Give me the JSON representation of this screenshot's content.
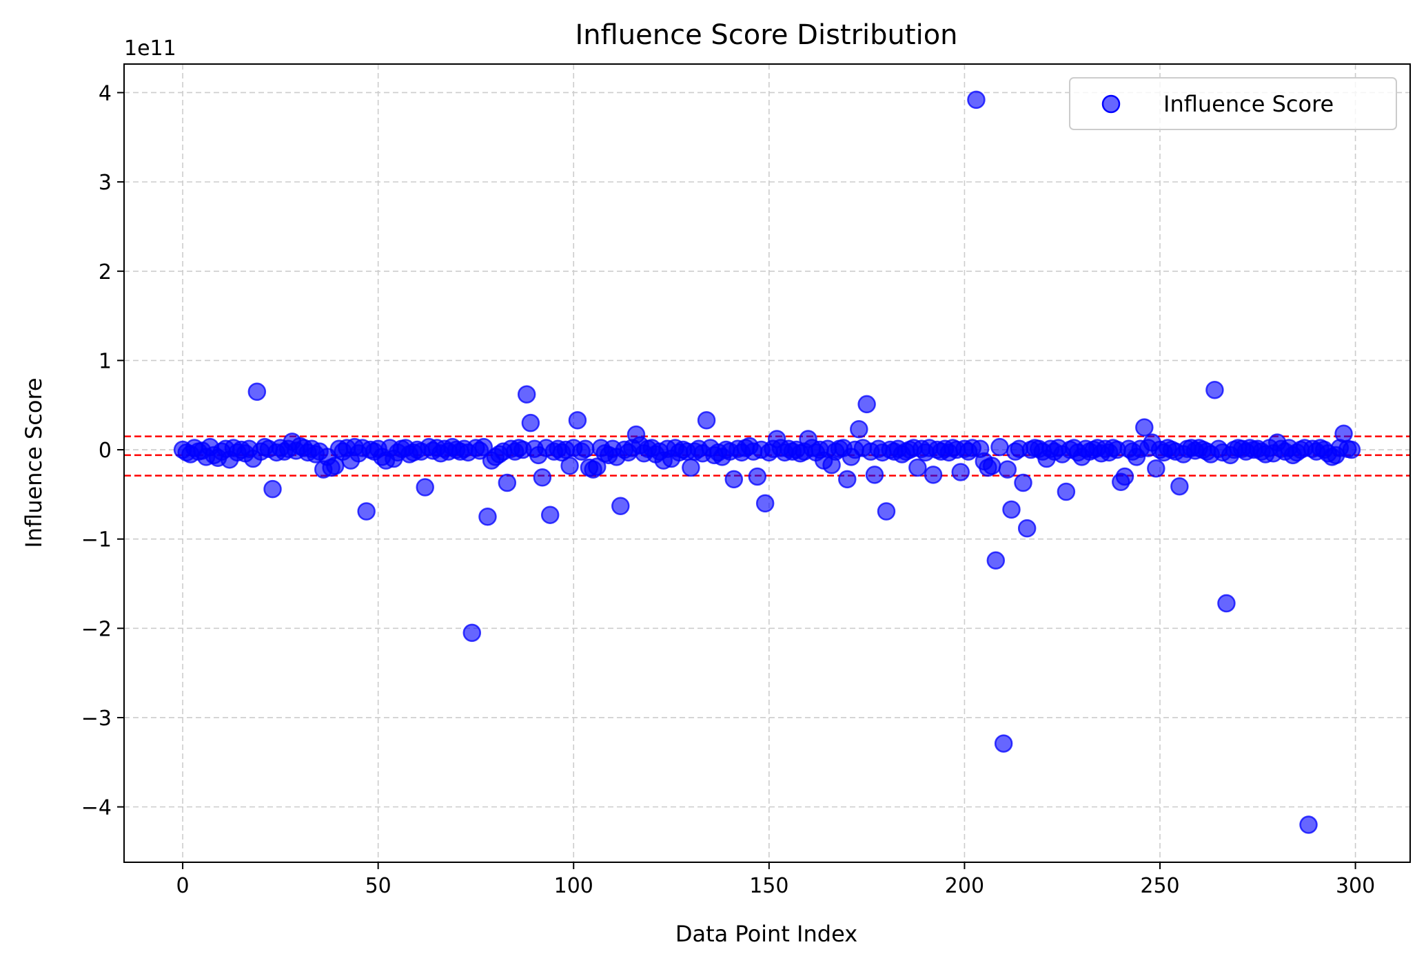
{
  "chart_data": {
    "type": "scatter",
    "title": "Influence Score Distribution",
    "xlabel": "Data Point Index",
    "ylabel": "Influence Score",
    "y_offset_text": "1e11",
    "xlim": [
      -15,
      314
    ],
    "ylim": [
      -4.62,
      4.32
    ],
    "xticks": [
      0,
      50,
      100,
      150,
      200,
      250,
      300
    ],
    "xtick_labels": [
      "0",
      "50",
      "100",
      "150",
      "200",
      "250",
      "300"
    ],
    "yticks": [
      -4,
      -3,
      -2,
      -1,
      0,
      1,
      2,
      3,
      4
    ],
    "ytick_labels": [
      "−4",
      "−3",
      "−2",
      "−1",
      "0",
      "1",
      "2",
      "3",
      "4"
    ],
    "grid": true,
    "legend_position": "top-right",
    "series": [
      {
        "name": "Influence Score",
        "color": "#0000ff",
        "alpha": 0.6,
        "points": [
          [
            0,
            0.0
          ],
          [
            1,
            -0.03
          ],
          [
            2,
            -0.05
          ],
          [
            3,
            0.02
          ],
          [
            4,
            -0.02
          ],
          [
            5,
            -0.01
          ],
          [
            6,
            -0.08
          ],
          [
            7,
            0.03
          ],
          [
            8,
            -0.06
          ],
          [
            9,
            -0.09
          ],
          [
            10,
            -0.02
          ],
          [
            11,
            0.01
          ],
          [
            12,
            -0.11
          ],
          [
            13,
            0.02
          ],
          [
            14,
            -0.03
          ],
          [
            15,
            0.0
          ],
          [
            16,
            -0.04
          ],
          [
            17,
            0.01
          ],
          [
            18,
            -0.1
          ],
          [
            19,
            0.65
          ],
          [
            20,
            -0.02
          ],
          [
            21,
            0.03
          ],
          [
            22,
            0.01
          ],
          [
            23,
            -0.44
          ],
          [
            24,
            -0.03
          ],
          [
            25,
            0.02
          ],
          [
            26,
            -0.02
          ],
          [
            27,
            0.01
          ],
          [
            28,
            0.09
          ],
          [
            29,
            -0.01
          ],
          [
            30,
            0.04
          ],
          [
            31,
            0.02
          ],
          [
            32,
            -0.03
          ],
          [
            33,
            0.01
          ],
          [
            34,
            -0.05
          ],
          [
            35,
            -0.02
          ],
          [
            36,
            -0.22
          ],
          [
            37,
            -0.08
          ],
          [
            38,
            -0.2
          ],
          [
            39,
            -0.18
          ],
          [
            40,
            0.01
          ],
          [
            41,
            -0.02
          ],
          [
            42,
            0.02
          ],
          [
            43,
            -0.12
          ],
          [
            44,
            0.03
          ],
          [
            45,
            -0.04
          ],
          [
            46,
            0.02
          ],
          [
            47,
            -0.69
          ],
          [
            48,
            0.0
          ],
          [
            49,
            -0.02
          ],
          [
            50,
            0.01
          ],
          [
            51,
            -0.08
          ],
          [
            52,
            -0.12
          ],
          [
            53,
            0.02
          ],
          [
            54,
            -0.1
          ],
          [
            55,
            -0.03
          ],
          [
            56,
            0.01
          ],
          [
            57,
            0.02
          ],
          [
            58,
            -0.05
          ],
          [
            59,
            -0.03
          ],
          [
            60,
            0.0
          ],
          [
            61,
            -0.02
          ],
          [
            62,
            -0.42
          ],
          [
            63,
            0.03
          ],
          [
            64,
            -0.01
          ],
          [
            65,
            0.02
          ],
          [
            66,
            -0.04
          ],
          [
            67,
            0.01
          ],
          [
            68,
            -0.02
          ],
          [
            69,
            0.03
          ],
          [
            70,
            0.0
          ],
          [
            71,
            -0.02
          ],
          [
            72,
            0.01
          ],
          [
            73,
            -0.03
          ],
          [
            74,
            -2.05
          ],
          [
            75,
            0.02
          ],
          [
            76,
            -0.01
          ],
          [
            77,
            0.03
          ],
          [
            78,
            -0.75
          ],
          [
            79,
            -0.12
          ],
          [
            80,
            -0.08
          ],
          [
            81,
            -0.05
          ],
          [
            82,
            -0.02
          ],
          [
            83,
            -0.37
          ],
          [
            84,
            0.01
          ],
          [
            85,
            -0.02
          ],
          [
            86,
            0.02
          ],
          [
            87,
            0.0
          ],
          [
            88,
            0.62
          ],
          [
            89,
            0.3
          ],
          [
            90,
            0.01
          ],
          [
            91,
            -0.06
          ],
          [
            92,
            -0.31
          ],
          [
            93,
            0.02
          ],
          [
            94,
            -0.73
          ],
          [
            95,
            -0.02
          ],
          [
            96,
            0.01
          ],
          [
            97,
            -0.03
          ],
          [
            98,
            0.0
          ],
          [
            99,
            -0.18
          ],
          [
            100,
            0.02
          ],
          [
            101,
            0.33
          ],
          [
            102,
            -0.02
          ],
          [
            103,
            0.01
          ],
          [
            104,
            -0.2
          ],
          [
            105,
            -0.22
          ],
          [
            106,
            -0.19
          ],
          [
            107,
            0.02
          ],
          [
            108,
            -0.04
          ],
          [
            109,
            -0.06
          ],
          [
            110,
            0.01
          ],
          [
            111,
            -0.08
          ],
          [
            112,
            -0.63
          ],
          [
            113,
            0.0
          ],
          [
            114,
            -0.03
          ],
          [
            115,
            0.02
          ],
          [
            116,
            0.17
          ],
          [
            117,
            0.05
          ],
          [
            118,
            -0.04
          ],
          [
            119,
            0.01
          ],
          [
            120,
            0.02
          ],
          [
            121,
            -0.05
          ],
          [
            122,
            -0.02
          ],
          [
            123,
            -0.12
          ],
          [
            124,
            0.01
          ],
          [
            125,
            -0.1
          ],
          [
            126,
            0.02
          ],
          [
            127,
            -0.03
          ],
          [
            128,
            0.0
          ],
          [
            129,
            -0.02
          ],
          [
            130,
            -0.2
          ],
          [
            131,
            -0.02
          ],
          [
            132,
            0.01
          ],
          [
            133,
            -0.04
          ],
          [
            134,
            0.33
          ],
          [
            135,
            0.02
          ],
          [
            136,
            -0.06
          ],
          [
            137,
            -0.03
          ],
          [
            138,
            -0.08
          ],
          [
            139,
            0.0
          ],
          [
            140,
            -0.02
          ],
          [
            141,
            -0.33
          ],
          [
            142,
            0.01
          ],
          [
            143,
            -0.03
          ],
          [
            144,
            0.02
          ],
          [
            145,
            0.04
          ],
          [
            146,
            -0.02
          ],
          [
            147,
            -0.3
          ],
          [
            148,
            0.0
          ],
          [
            149,
            -0.6
          ],
          [
            150,
            -0.03
          ],
          [
            151,
            0.01
          ],
          [
            152,
            0.12
          ],
          [
            153,
            0.02
          ],
          [
            154,
            -0.03
          ],
          [
            155,
            0.01
          ],
          [
            156,
            -0.02
          ],
          [
            157,
            0.0
          ],
          [
            158,
            -0.04
          ],
          [
            159,
            -0.02
          ],
          [
            160,
            0.12
          ],
          [
            161,
            0.02
          ],
          [
            162,
            -0.03
          ],
          [
            163,
            0.0
          ],
          [
            164,
            -0.12
          ],
          [
            165,
            0.01
          ],
          [
            166,
            -0.17
          ],
          [
            167,
            -0.02
          ],
          [
            168,
            0.01
          ],
          [
            169,
            0.02
          ],
          [
            170,
            -0.33
          ],
          [
            171,
            -0.08
          ],
          [
            172,
            0.0
          ],
          [
            173,
            0.23
          ],
          [
            174,
            0.02
          ],
          [
            175,
            0.51
          ],
          [
            176,
            -0.02
          ],
          [
            177,
            -0.28
          ],
          [
            178,
            0.01
          ],
          [
            179,
            -0.03
          ],
          [
            180,
            -0.69
          ],
          [
            181,
            0.0
          ],
          [
            182,
            -0.02
          ],
          [
            183,
            0.01
          ],
          [
            184,
            -0.05
          ],
          [
            185,
            -0.02
          ],
          [
            186,
            0.0
          ],
          [
            187,
            0.02
          ],
          [
            188,
            -0.2
          ],
          [
            189,
            0.01
          ],
          [
            190,
            -0.03
          ],
          [
            191,
            0.02
          ],
          [
            192,
            -0.28
          ],
          [
            193,
            0.0
          ],
          [
            194,
            -0.02
          ],
          [
            195,
            0.01
          ],
          [
            196,
            -0.03
          ],
          [
            197,
            0.02
          ],
          [
            198,
            0.0
          ],
          [
            199,
            -0.25
          ],
          [
            200,
            0.01
          ],
          [
            201,
            -0.02
          ],
          [
            202,
            0.02
          ],
          [
            203,
            3.92
          ],
          [
            204,
            0.01
          ],
          [
            205,
            -0.13
          ],
          [
            206,
            -0.2
          ],
          [
            207,
            -0.18
          ],
          [
            208,
            -1.24
          ],
          [
            209,
            0.03
          ],
          [
            210,
            -3.29
          ],
          [
            211,
            -0.22
          ],
          [
            212,
            -0.67
          ],
          [
            213,
            -0.02
          ],
          [
            214,
            0.01
          ],
          [
            215,
            -0.37
          ],
          [
            216,
            -0.88
          ],
          [
            217,
            0.0
          ],
          [
            218,
            0.02
          ],
          [
            219,
            0.01
          ],
          [
            220,
            -0.02
          ],
          [
            221,
            -0.1
          ],
          [
            222,
            0.01
          ],
          [
            223,
            -0.02
          ],
          [
            224,
            0.02
          ],
          [
            225,
            -0.05
          ],
          [
            226,
            -0.47
          ],
          [
            227,
            0.0
          ],
          [
            228,
            0.02
          ],
          [
            229,
            -0.03
          ],
          [
            230,
            -0.08
          ],
          [
            231,
            0.01
          ],
          [
            232,
            -0.02
          ],
          [
            233,
            0.0
          ],
          [
            234,
            0.02
          ],
          [
            235,
            -0.04
          ],
          [
            236,
            0.01
          ],
          [
            237,
            -0.03
          ],
          [
            238,
            0.02
          ],
          [
            239,
            0.0
          ],
          [
            240,
            -0.36
          ],
          [
            241,
            -0.3
          ],
          [
            242,
            0.01
          ],
          [
            243,
            -0.02
          ],
          [
            244,
            -0.08
          ],
          [
            245,
            0.01
          ],
          [
            246,
            0.25
          ],
          [
            247,
            0.02
          ],
          [
            248,
            0.08
          ],
          [
            249,
            -0.21
          ],
          [
            250,
            0.0
          ],
          [
            251,
            -0.03
          ],
          [
            252,
            0.02
          ],
          [
            253,
            0.0
          ],
          [
            254,
            -0.02
          ],
          [
            255,
            -0.41
          ],
          [
            256,
            -0.05
          ],
          [
            257,
            0.01
          ],
          [
            258,
            0.02
          ],
          [
            259,
            -0.01
          ],
          [
            260,
            0.02
          ],
          [
            261,
            0.0
          ],
          [
            262,
            -0.02
          ],
          [
            263,
            -0.05
          ],
          [
            264,
            0.67
          ],
          [
            265,
            0.01
          ],
          [
            266,
            -0.03
          ],
          [
            267,
            -1.72
          ],
          [
            268,
            -0.06
          ],
          [
            269,
            0.0
          ],
          [
            270,
            0.02
          ],
          [
            271,
            0.01
          ],
          [
            272,
            -0.02
          ],
          [
            273,
            0.02
          ],
          [
            274,
            0.0
          ],
          [
            275,
            0.01
          ],
          [
            276,
            -0.02
          ],
          [
            277,
            -0.05
          ],
          [
            278,
            0.02
          ],
          [
            279,
            -0.04
          ],
          [
            280,
            0.08
          ],
          [
            281,
            0.01
          ],
          [
            282,
            -0.02
          ],
          [
            283,
            0.02
          ],
          [
            284,
            -0.06
          ],
          [
            285,
            -0.03
          ],
          [
            286,
            0.0
          ],
          [
            287,
            0.02
          ],
          [
            288,
            -4.2
          ],
          [
            289,
            0.01
          ],
          [
            290,
            -0.02
          ],
          [
            291,
            0.02
          ],
          [
            292,
            0.0
          ],
          [
            293,
            -0.04
          ],
          [
            294,
            -0.08
          ],
          [
            295,
            -0.06
          ],
          [
            296,
            0.02
          ],
          [
            297,
            0.18
          ],
          [
            298,
            0.01
          ],
          [
            299,
            0.0
          ]
        ]
      }
    ],
    "threshold_lines": {
      "color": "#ff0000",
      "values": [
        0.15,
        -0.06,
        -0.29
      ]
    }
  }
}
